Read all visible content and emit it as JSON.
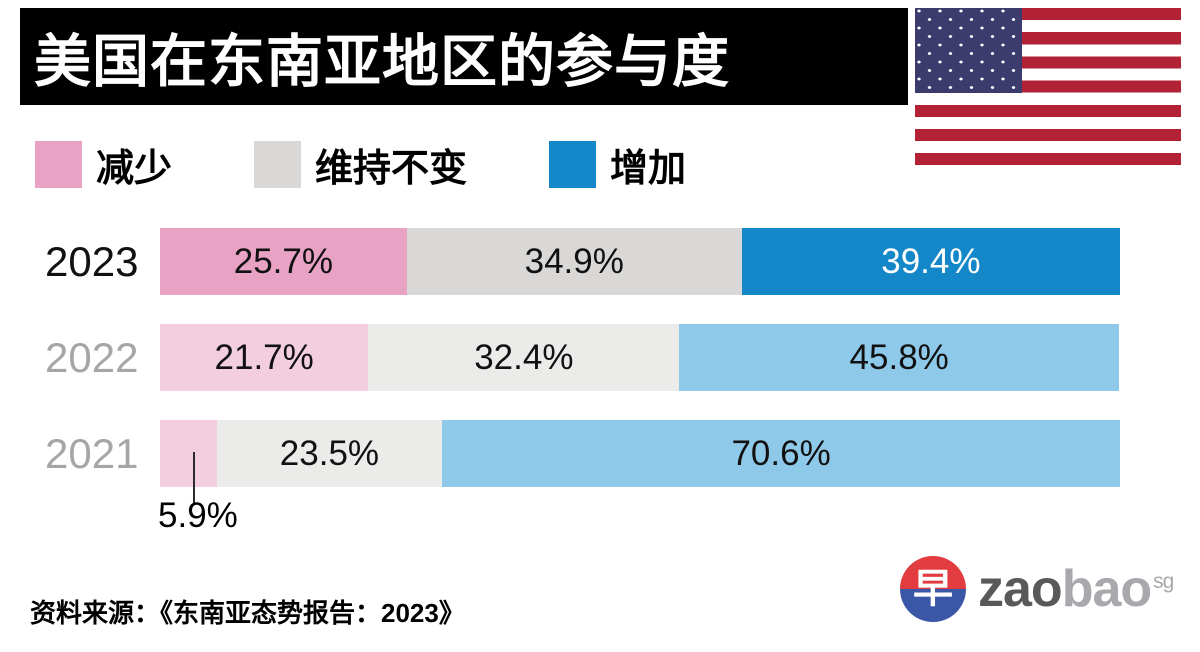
{
  "title": "美国在东南亚地区的参与度",
  "legend": {
    "items": [
      {
        "label": "减少",
        "color": "#E8A2C4"
      },
      {
        "label": "维持不变",
        "color": "#D9D8D6"
      },
      {
        "label": "增加",
        "color": "#1487C9"
      }
    ]
  },
  "chart_data": {
    "type": "bar",
    "stacked": true,
    "orientation": "horizontal",
    "title": "美国在东南亚地区的参与度",
    "categories": [
      "2023",
      "2022",
      "2021"
    ],
    "series": [
      {
        "name": "减少",
        "values": [
          25.7,
          21.7,
          5.9
        ]
      },
      {
        "name": "维持不变",
        "values": [
          34.9,
          32.4,
          23.5
        ]
      },
      {
        "name": "增加",
        "values": [
          39.4,
          45.8,
          70.6
        ]
      }
    ],
    "xlim": [
      0,
      100
    ],
    "value_suffix": "%",
    "legend_position": "top",
    "outside_label": {
      "category": "2021",
      "series": "减少",
      "text": "5.9%"
    }
  },
  "style": {
    "banner_bg": "#000000",
    "banner_text": "#FFFFFF",
    "row_strong": [
      "#E8A2C4",
      "#D9D8D6",
      "#1487C9"
    ],
    "row_light": [
      "#F3CEDF",
      "#EBEBE9",
      "#8FC9E9"
    ],
    "year_active": "#111111",
    "year_muted": "#A6A6A6",
    "label_dark": "#111111",
    "label_light": "#FFFFFF",
    "flag_red": "#B22234",
    "flag_blue": "#3C3B6E"
  },
  "source": "资料来源：《东南亚态势报告：2023》",
  "logo": {
    "glyph": "早",
    "zao": "zao",
    "bao": "bao",
    "sg": "sg"
  }
}
